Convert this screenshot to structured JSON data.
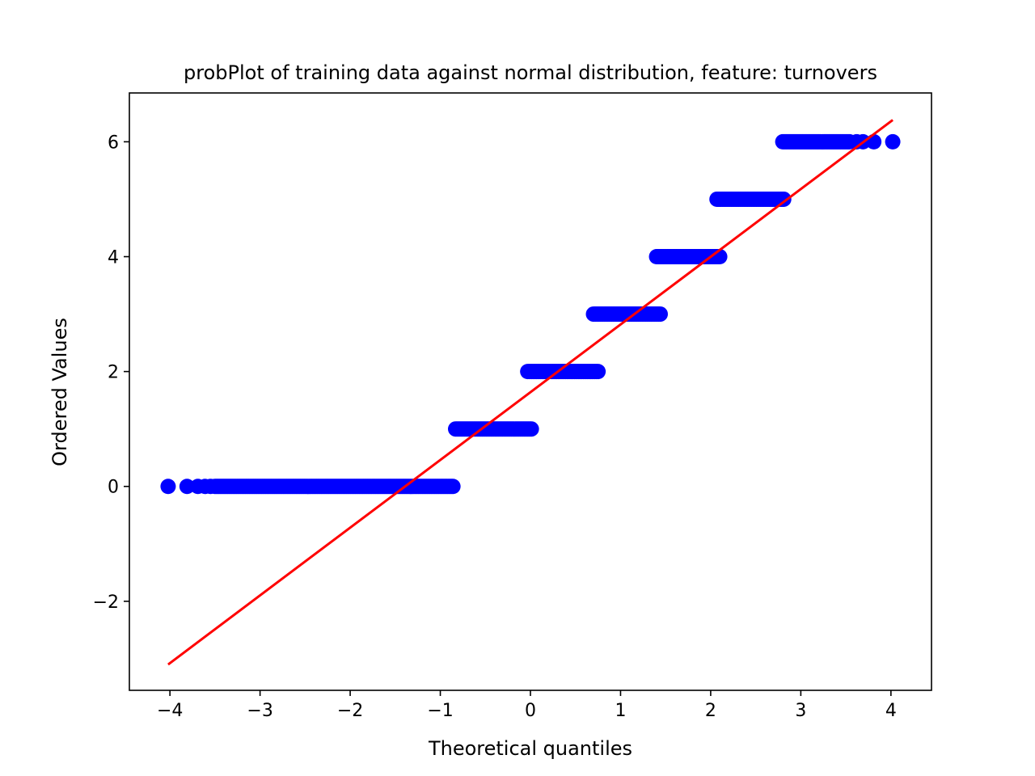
{
  "chart_data": {
    "type": "scatter",
    "title": "probPlot of training data against normal distribution, feature: turnovers",
    "xlabel": "Theoretical quantiles",
    "ylabel": "Ordered Values",
    "xlim": [
      -4.45,
      4.45
    ],
    "ylim": [
      -3.55,
      6.85
    ],
    "xticks": [
      -4,
      -3,
      -2,
      -1,
      0,
      1,
      2,
      3,
      4
    ],
    "xtick_labels": [
      "−4",
      "−3",
      "−2",
      "−1",
      "0",
      "1",
      "2",
      "3",
      "4"
    ],
    "yticks": [
      -2,
      0,
      2,
      4,
      6
    ],
    "ytick_labels": [
      "−2",
      "0",
      "2",
      "4",
      "6"
    ],
    "grid": false,
    "point_color": "#0000ff",
    "line_color": "#ff0000",
    "series": [
      {
        "type": "scatter",
        "groups": [
          {
            "y": 0,
            "x_start": -3.5,
            "x_end": -0.85,
            "isolated_x": [
              -4.02,
              -3.81,
              -3.69,
              -3.61,
              -3.55
            ]
          },
          {
            "y": 1,
            "x_start": -0.83,
            "x_end": 0.02,
            "isolated_x": []
          },
          {
            "y": 2,
            "x_start": -0.03,
            "x_end": 0.75,
            "isolated_x": []
          },
          {
            "y": 3,
            "x_start": 0.7,
            "x_end": 1.45,
            "isolated_x": []
          },
          {
            "y": 4,
            "x_start": 1.4,
            "x_end": 2.1,
            "isolated_x": []
          },
          {
            "y": 5,
            "x_start": 2.07,
            "x_end": 2.82,
            "isolated_x": []
          },
          {
            "y": 6,
            "x_start": 2.8,
            "x_end": 3.55,
            "isolated_x": [
              3.62,
              3.69,
              3.81,
              4.02
            ]
          }
        ]
      },
      {
        "type": "line",
        "x": [
          -4.02,
          4.02
        ],
        "y": [
          -3.1,
          6.38
        ]
      }
    ]
  }
}
